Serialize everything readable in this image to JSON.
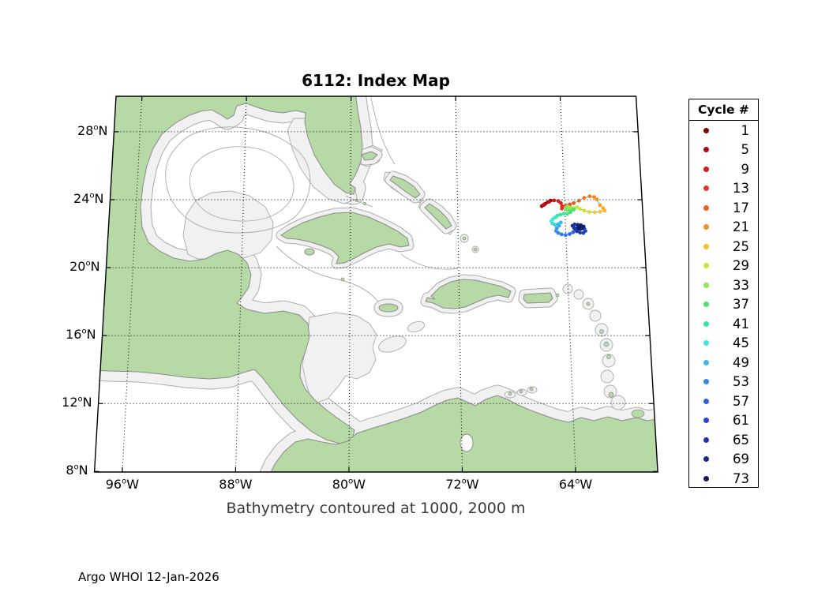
{
  "title": "6112: Index Map",
  "caption": "Bathymetry contoured at 1000, 2000 m",
  "footer": "Argo WHOI 12-Jan-2026",
  "legend": {
    "title": "Cycle #",
    "entries": [
      {
        "cycle": 1,
        "color": "#7f0000"
      },
      {
        "cycle": 5,
        "color": "#b20a0a"
      },
      {
        "cycle": 9,
        "color": "#e01717"
      },
      {
        "cycle": 13,
        "color": "#ee3322"
      },
      {
        "cycle": 17,
        "color": "#f4601e"
      },
      {
        "cycle": 21,
        "color": "#fb8d1f"
      },
      {
        "cycle": 25,
        "color": "#fdc12e"
      },
      {
        "cycle": 29,
        "color": "#cfe529"
      },
      {
        "cycle": 33,
        "color": "#8ce94f"
      },
      {
        "cycle": 37,
        "color": "#47e468"
      },
      {
        "cycle": 41,
        "color": "#2ee89d"
      },
      {
        "cycle": 45,
        "color": "#3ce9da"
      },
      {
        "cycle": 49,
        "color": "#3cb8f0"
      },
      {
        "cycle": 53,
        "color": "#3287ec"
      },
      {
        "cycle": 57,
        "color": "#2b62e4"
      },
      {
        "cycle": 61,
        "color": "#2345d4"
      },
      {
        "cycle": 65,
        "color": "#1c35b4"
      },
      {
        "cycle": 69,
        "color": "#16288e"
      },
      {
        "cycle": 73,
        "color": "#101c62"
      }
    ]
  },
  "axes": {
    "lat_ticks": [
      {
        "deg": 28,
        "hemi": "N"
      },
      {
        "deg": 24,
        "hemi": "N"
      },
      {
        "deg": 20,
        "hemi": "N"
      },
      {
        "deg": 16,
        "hemi": "N"
      },
      {
        "deg": 12,
        "hemi": "N"
      },
      {
        "deg": 8,
        "hemi": "N"
      }
    ],
    "lon_ticks": [
      {
        "deg": 96,
        "hemi": "W"
      },
      {
        "deg": 88,
        "hemi": "W"
      },
      {
        "deg": 80,
        "hemi": "W"
      },
      {
        "deg": 72,
        "hemi": "W"
      },
      {
        "deg": 64,
        "hemi": "W"
      }
    ]
  },
  "chart_data": {
    "type": "scatter",
    "title": "6112: Index Map",
    "legend_title": "Cycle #",
    "geo_bounds": {
      "lon_west": 98.0,
      "lon_east": 58.2,
      "lat_south": 8.0,
      "lat_north": 30.1
    },
    "bathymetry_contours_m": [
      1000,
      2000
    ],
    "track_line_color": "#4fdce8",
    "trajectory_lonW_latN_cycle": [
      [
        65.05,
        23.95,
        1
      ],
      [
        65.25,
        23.86,
        2
      ],
      [
        65.45,
        23.76,
        3
      ],
      [
        65.6,
        23.68,
        4
      ],
      [
        65.72,
        23.62,
        5
      ],
      [
        65.52,
        23.72,
        6
      ],
      [
        65.15,
        23.88,
        7
      ],
      [
        64.78,
        23.96,
        8
      ],
      [
        64.46,
        23.92,
        9
      ],
      [
        64.28,
        23.8,
        10
      ],
      [
        64.2,
        23.62,
        11
      ],
      [
        64.22,
        23.48,
        12
      ],
      [
        64.05,
        23.58,
        13
      ],
      [
        63.86,
        23.66,
        14
      ],
      [
        63.62,
        23.72,
        15
      ],
      [
        63.32,
        23.8,
        16
      ],
      [
        62.92,
        23.94,
        17
      ],
      [
        62.52,
        24.1,
        18
      ],
      [
        62.1,
        24.2,
        19
      ],
      [
        61.78,
        24.16,
        20
      ],
      [
        61.58,
        24.02,
        21
      ],
      [
        61.36,
        23.68,
        22
      ],
      [
        61.14,
        23.5,
        23
      ],
      [
        61.02,
        23.36,
        24
      ],
      [
        61.38,
        23.3,
        25
      ],
      [
        61.78,
        23.26,
        26
      ],
      [
        62.18,
        23.28,
        27
      ],
      [
        62.56,
        23.36,
        28
      ],
      [
        62.86,
        23.46,
        29
      ],
      [
        63.1,
        23.56,
        30
      ],
      [
        63.32,
        23.5,
        31
      ],
      [
        63.56,
        23.54,
        32
      ],
      [
        63.8,
        23.62,
        33
      ],
      [
        63.94,
        23.52,
        34
      ],
      [
        63.78,
        23.4,
        35
      ],
      [
        63.56,
        23.36,
        36
      ],
      [
        63.34,
        23.42,
        37
      ],
      [
        63.6,
        23.26,
        38
      ],
      [
        63.84,
        23.16,
        39
      ],
      [
        64.08,
        23.18,
        40
      ],
      [
        64.34,
        23.12,
        41
      ],
      [
        64.58,
        23.06,
        42
      ],
      [
        64.74,
        22.96,
        43
      ],
      [
        64.92,
        22.86,
        44
      ],
      [
        65.04,
        22.74,
        45
      ],
      [
        64.96,
        22.6,
        46
      ],
      [
        64.78,
        22.52,
        47
      ],
      [
        64.56,
        22.56,
        48
      ],
      [
        64.34,
        22.66,
        49
      ],
      [
        64.48,
        22.46,
        50
      ],
      [
        64.66,
        22.32,
        51
      ],
      [
        64.72,
        22.16,
        52
      ],
      [
        64.56,
        22.04,
        53
      ],
      [
        64.32,
        21.96,
        54
      ],
      [
        64.02,
        21.92,
        55
      ],
      [
        63.72,
        21.98,
        56
      ],
      [
        63.46,
        22.08,
        57
      ],
      [
        63.28,
        22.22,
        58
      ],
      [
        63.06,
        22.3,
        59
      ],
      [
        62.84,
        22.36,
        60
      ],
      [
        62.62,
        22.3,
        61
      ],
      [
        62.54,
        22.16,
        62
      ],
      [
        62.7,
        22.04,
        63
      ],
      [
        62.94,
        22.06,
        64
      ],
      [
        63.18,
        22.14,
        65
      ],
      [
        63.36,
        22.32,
        66
      ],
      [
        63.48,
        22.46,
        67
      ],
      [
        63.32,
        22.54,
        68
      ],
      [
        63.08,
        22.52,
        69
      ],
      [
        62.86,
        22.5,
        70
      ],
      [
        62.66,
        22.42,
        71
      ],
      [
        62.78,
        22.3,
        72
      ],
      [
        62.96,
        22.28,
        73
      ],
      [
        63.1,
        22.36,
        74
      ],
      [
        62.98,
        22.44,
        75
      ]
    ]
  }
}
